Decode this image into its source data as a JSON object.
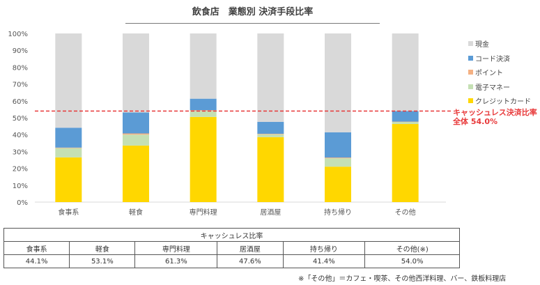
{
  "chart_data": {
    "type": "bar",
    "stacked": true,
    "title": "飲食店　業態別 決済手段比率",
    "categories": [
      "食事系",
      "軽食",
      "専門料理",
      "居酒屋",
      "持ち帰り",
      "その他"
    ],
    "series": [
      {
        "name": "クレジットカード",
        "color": "#ffd700",
        "values": [
          26.5,
          33.5,
          50.5,
          38.5,
          21.0,
          46.3
        ]
      },
      {
        "name": "電子マネー",
        "color": "#c5e0b4",
        "values": [
          5.5,
          6.5,
          3.5,
          1.7,
          5.0,
          1.2
        ]
      },
      {
        "name": "ポイント",
        "color": "#f4b183",
        "values": [
          0.3,
          0.7,
          0.5,
          0.3,
          0.4,
          0.2
        ]
      },
      {
        "name": "コード決済",
        "color": "#5b9bd5",
        "values": [
          11.8,
          12.4,
          6.8,
          7.1,
          15.0,
          6.3
        ]
      },
      {
        "name": "現金",
        "color": "#d9d9d9",
        "values": [
          55.9,
          46.9,
          38.7,
          52.4,
          58.6,
          46.0
        ]
      }
    ],
    "legend_order": [
      "現金",
      "コード決済",
      "ポイント",
      "電子マネー",
      "クレジットカード"
    ],
    "yticks": [
      "0%",
      "10%",
      "20%",
      "30%",
      "40%",
      "50%",
      "60%",
      "70%",
      "80%",
      "90%",
      "100%"
    ],
    "ylim": [
      0,
      100
    ],
    "legend_position": "right",
    "reference_line": {
      "value": 54.0,
      "label1": "キャッシュレス決済比率",
      "label2": "全体 54.0%",
      "color": "#e8393a"
    }
  },
  "table": {
    "title": "キャッシュレス比率",
    "headers": [
      "食事系",
      "軽食",
      "専門料理",
      "居酒屋",
      "持ち帰り",
      "その他(※)"
    ],
    "values": [
      "44.1%",
      "53.1%",
      "61.3%",
      "47.6%",
      "41.4%",
      "54.0%"
    ]
  },
  "note": "※「その他」＝カフェ・喫茶、その他西洋料理、バー、鉄板料理店"
}
